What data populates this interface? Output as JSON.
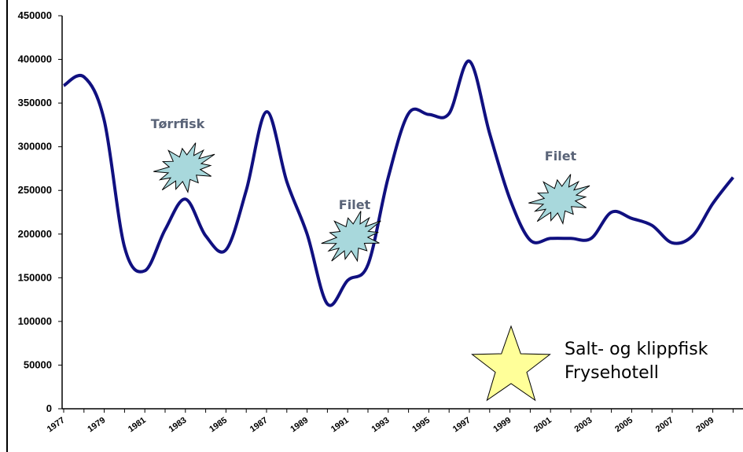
{
  "chart_data": {
    "type": "line",
    "title": "",
    "xlabel": "",
    "ylabel": "",
    "ylim": [
      0,
      450000
    ],
    "xlim": [
      1977,
      2010
    ],
    "yticks": [
      0,
      50000,
      100000,
      150000,
      200000,
      250000,
      300000,
      350000,
      400000,
      450000
    ],
    "xtick_labels": [
      "1977",
      "1979",
      "1981",
      "1983",
      "1985",
      "1987",
      "1989",
      "1991",
      "1993",
      "1995",
      "1997",
      "1999",
      "2001",
      "2003",
      "2005",
      "2007",
      "2009"
    ],
    "grid": false,
    "legend": "none",
    "series": [
      {
        "color": "#101080",
        "x": [
          1977,
          1978,
          1979,
          1980,
          1981,
          1982,
          1983,
          1984,
          1985,
          1986,
          1987,
          1988,
          1989,
          1990,
          1991,
          1992,
          1993,
          1994,
          1995,
          1996,
          1997,
          1998,
          1999,
          2000,
          2001,
          2002,
          2003,
          2004,
          2005,
          2006,
          2007,
          2008,
          2009,
          2010
        ],
        "y": [
          370000,
          380000,
          330000,
          185000,
          158000,
          205000,
          240000,
          198000,
          182000,
          250000,
          340000,
          260000,
          200000,
          120000,
          147000,
          165000,
          265000,
          338000,
          337000,
          338000,
          398000,
          315000,
          240000,
          193000,
          195000,
          195000,
          195000,
          225000,
          218000,
          210000,
          190000,
          198000,
          235000,
          265000
        ]
      }
    ],
    "annotations": [
      {
        "kind": "burst",
        "label": "Tørrfisk",
        "label_color": "#5a6478",
        "fill": "#a8d8dc"
      },
      {
        "kind": "burst",
        "label": "Filet",
        "label_color": "#5a6478",
        "fill": "#a8d8dc"
      },
      {
        "kind": "burst",
        "label": "Filet",
        "label_color": "#5a6478",
        "fill": "#a8d8dc"
      },
      {
        "kind": "star",
        "label_lines": [
          "Salt- og klippfisk",
          "Frysehotell"
        ],
        "fill": "#ffff99"
      }
    ]
  }
}
